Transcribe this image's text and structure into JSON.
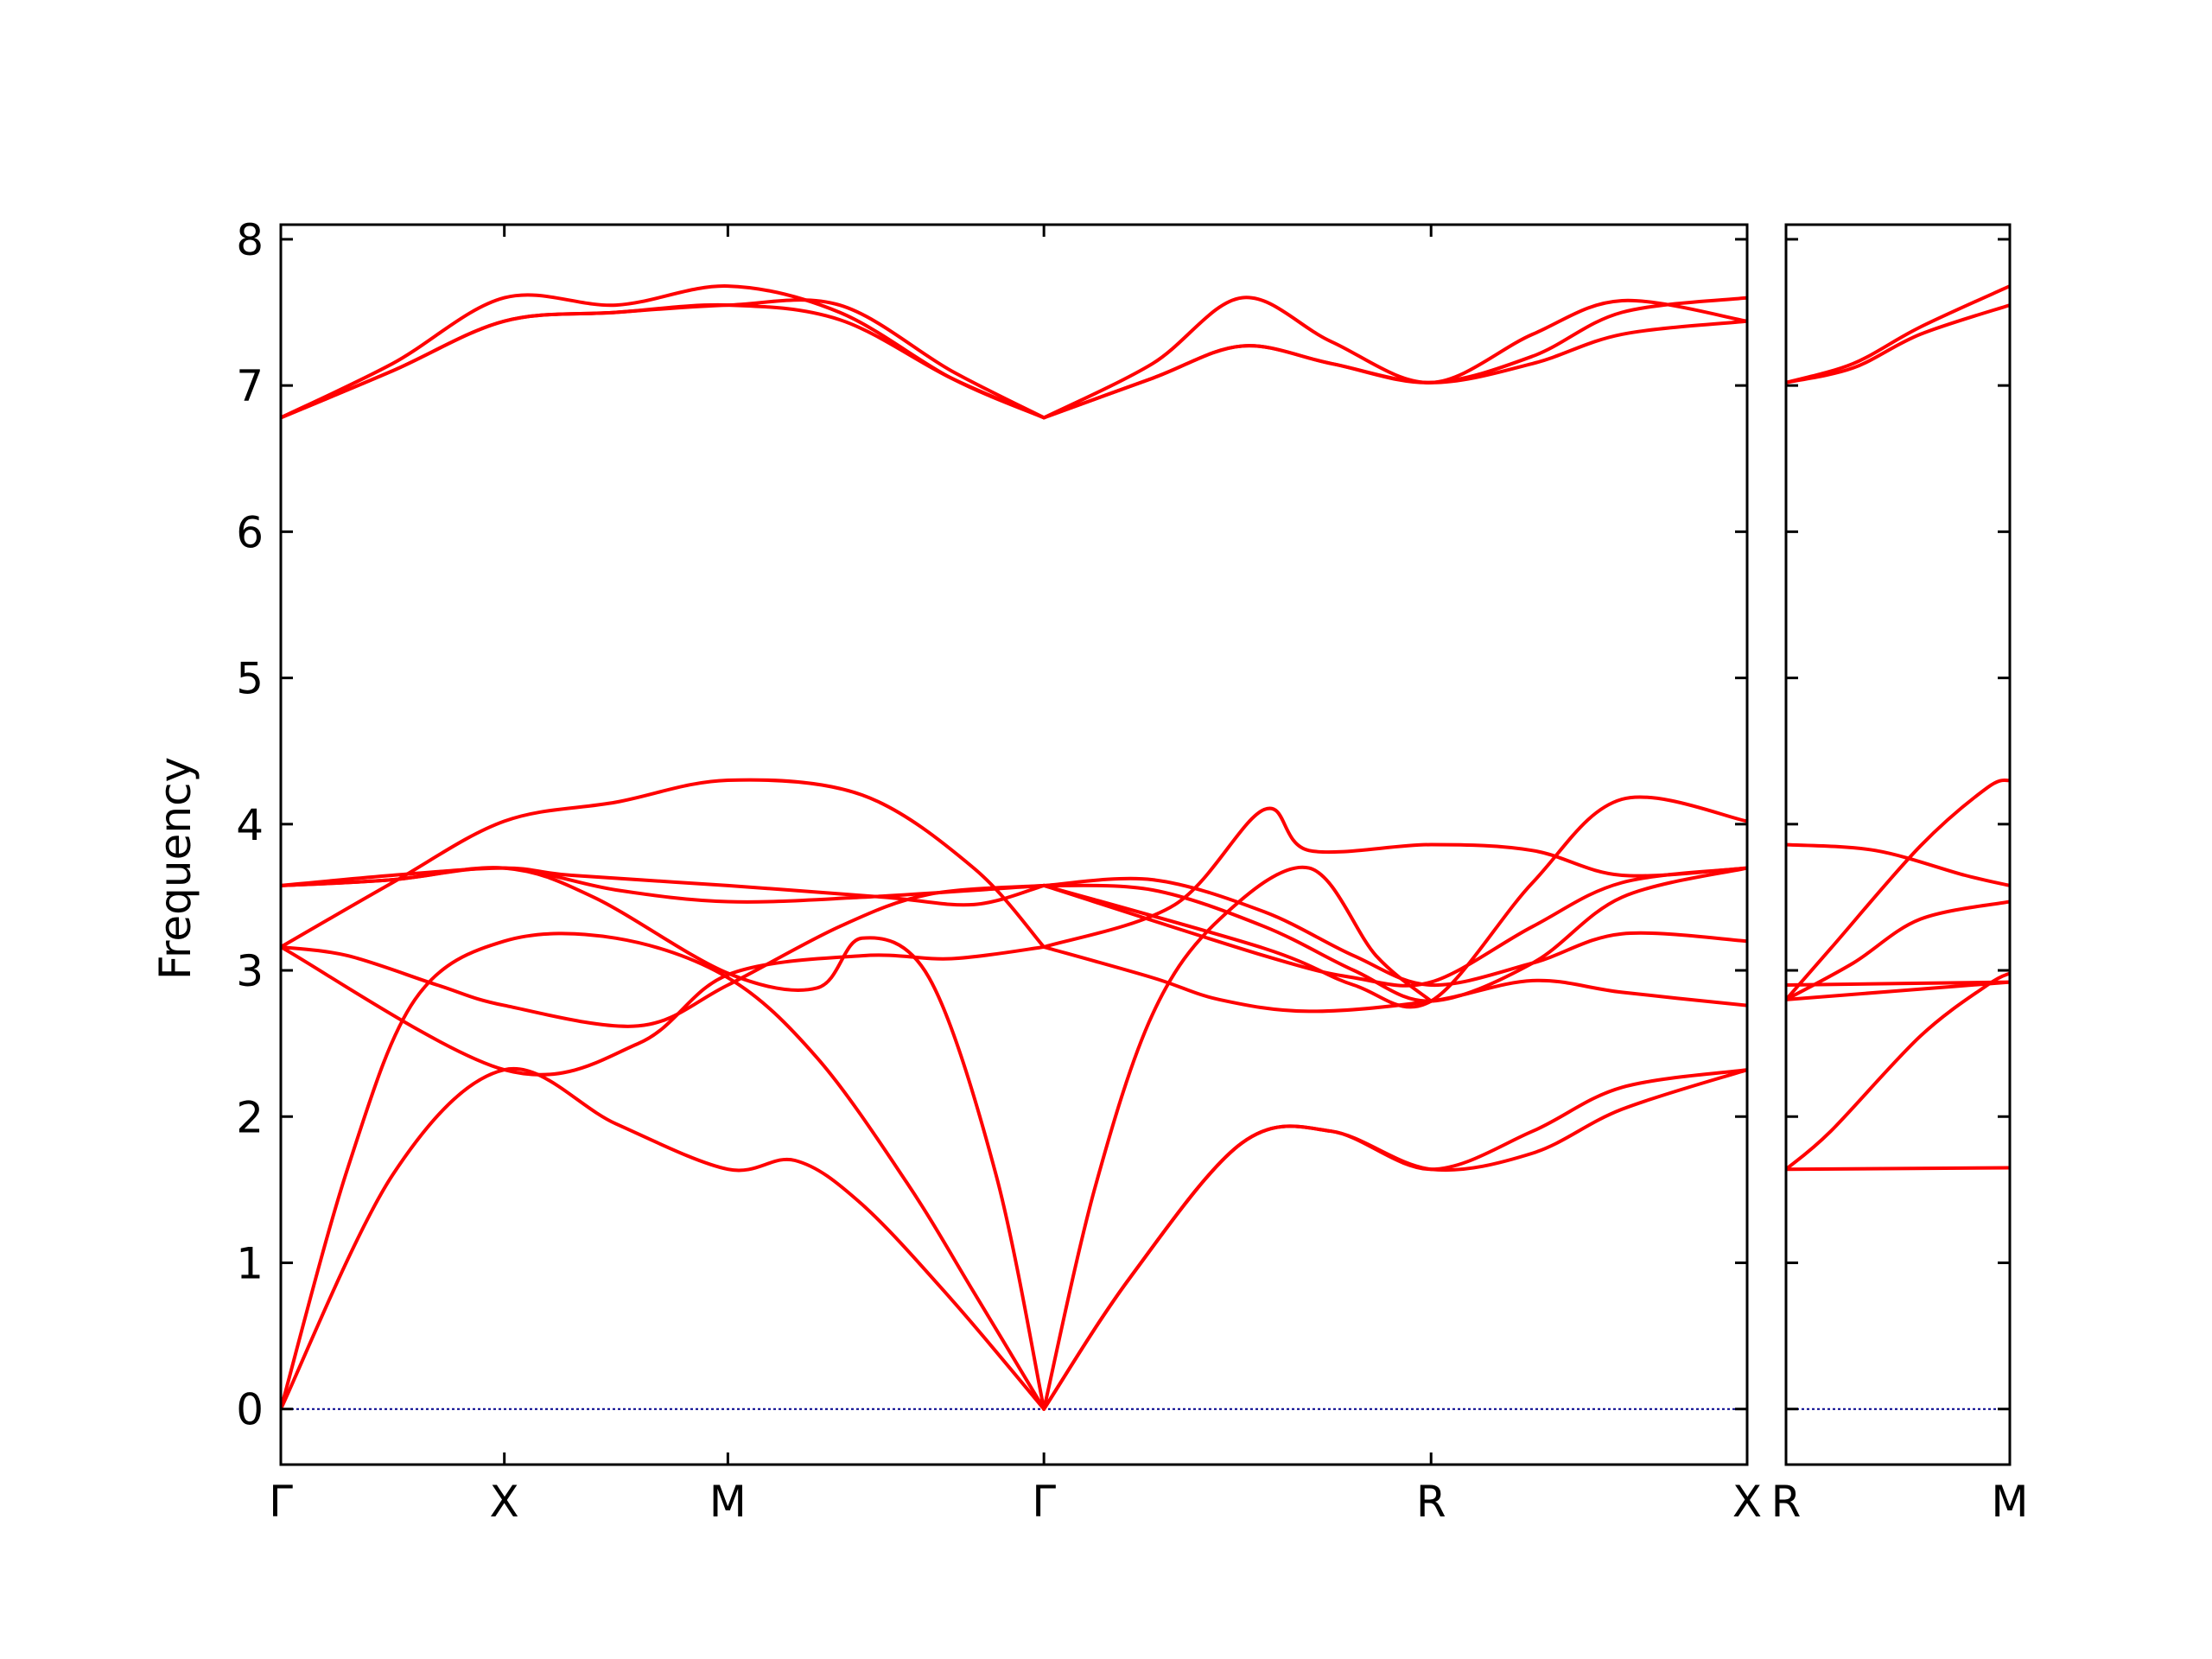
{
  "chart_data": {
    "type": "line",
    "ylabel": "Frequency",
    "ylim": [
      -0.38,
      8.1
    ],
    "yticks": [
      0,
      1,
      2,
      3,
      4,
      5,
      6,
      7,
      8
    ],
    "grid": false,
    "line_color": "#ff0000",
    "zero_line_color": "#00008b",
    "panels": [
      {
        "id": "main",
        "xticks": [
          {
            "label": "Γ",
            "x": 0
          },
          {
            "label": "X",
            "x": 0.5
          },
          {
            "label": "M",
            "x": 1.0
          },
          {
            "label": "Γ",
            "x": 1.707
          },
          {
            "label": "R",
            "x": 2.573
          },
          {
            "label": "X",
            "x": 3.28
          }
        ],
        "xlim": [
          0,
          3.28
        ],
        "series": [
          {
            "x": [
              0,
              0.25,
              0.5,
              0.75,
              1.0,
              1.15,
              1.3,
              1.5,
              1.707
            ],
            "y": [
              0,
              1.6,
              2.32,
              1.95,
              1.64,
              1.7,
              1.4,
              0.75,
              0
            ]
          },
          {
            "x": [
              0,
              0.15,
              0.3,
              0.5,
              0.75,
              1.0,
              1.2,
              1.4,
              1.55,
              1.707
            ],
            "y": [
              0,
              1.65,
              2.8,
              3.2,
              3.22,
              2.95,
              2.4,
              1.55,
              0.8,
              0
            ]
          },
          {
            "x": [
              0,
              0.25,
              0.5,
              0.7,
              1.0,
              1.2,
              1.3,
              1.45,
              1.6,
              1.707
            ],
            "y": [
              3.58,
              3.62,
              3.7,
              3.5,
              2.98,
              2.88,
              3.22,
              2.95,
              1.6,
              0
            ]
          },
          {
            "x": [
              0,
              0.15,
              0.35,
              0.5,
              0.8,
              1.0,
              1.25,
              1.45,
              1.707
            ],
            "y": [
              3.16,
              3.1,
              2.9,
              2.76,
              2.62,
              2.9,
              3.3,
              3.52,
              3.58
            ]
          },
          {
            "x": [
              0,
              0.5,
              0.8,
              1.0,
              1.3,
              1.5,
              1.707
            ],
            "y": [
              3.16,
              2.32,
              2.5,
              2.97,
              3.1,
              3.08,
              3.16
            ]
          },
          {
            "x": [
              0,
              0.25,
              0.5,
              0.65,
              1.0,
              1.35,
              1.55,
              1.707
            ],
            "y": [
              3.58,
              3.65,
              3.7,
              3.65,
              3.58,
              3.5,
              3.45,
              3.58
            ]
          },
          {
            "x": [
              0,
              0.25,
              0.5,
              0.75,
              1.0,
              1.3,
              1.55,
              1.707
            ],
            "y": [
              3.16,
              3.6,
              4.02,
              4.15,
              4.3,
              4.2,
              3.7,
              3.16
            ]
          },
          {
            "x": [
              0,
              0.25,
              0.5,
              0.75,
              1.0,
              1.3,
              1.707
            ],
            "y": [
              3.58,
              3.62,
              3.7,
              3.55,
              3.47,
              3.5,
              3.58
            ]
          },
          {
            "x": [
              0,
              0.25,
              0.5,
              0.75,
              1.0,
              1.25,
              1.5,
              1.707
            ],
            "y": [
              6.78,
              7.1,
              7.44,
              7.5,
              7.55,
              7.45,
              7.05,
              6.78
            ]
          },
          {
            "x": [
              0,
              0.25,
              0.5,
              0.75,
              1.0,
              1.25,
              1.5,
              1.707
            ],
            "y": [
              6.78,
              7.15,
              7.6,
              7.55,
              7.68,
              7.5,
              7.05,
              6.78
            ]
          },
          {
            "x": [
              0,
              0.25,
              0.5,
              0.75,
              1.0,
              1.25,
              1.5,
              1.707
            ],
            "y": [
              6.78,
              7.1,
              7.44,
              7.5,
              7.55,
              7.55,
              7.1,
              6.78
            ]
          },
          {
            "x": [
              1.707,
              1.9,
              2.15,
              2.35,
              2.573,
              2.8,
              3.0,
              3.28
            ],
            "y": [
              0,
              0.9,
              1.82,
              1.9,
              1.64,
              1.9,
              2.2,
              2.32
            ]
          },
          {
            "x": [
              1.707,
              1.9,
              2.15,
              2.35,
              2.573,
              2.8,
              3.0,
              3.28
            ],
            "y": [
              0,
              0.9,
              1.82,
              1.9,
              1.64,
              1.75,
              2.05,
              2.32
            ]
          },
          {
            "x": [
              1.707,
              1.82,
              1.95,
              2.1,
              2.3,
              2.45,
              2.573
            ],
            "y": [
              0,
              1.5,
              2.7,
              3.35,
              3.7,
              3.1,
              2.79
            ]
          },
          {
            "x": [
              1.707,
              1.95,
              2.1,
              2.3,
              2.573,
              2.8,
              3.0,
              3.28
            ],
            "y": [
              3.16,
              2.95,
              2.8,
              2.72,
              2.79,
              2.93,
              2.85,
              2.76
            ]
          },
          {
            "x": [
              1.707,
              2.0,
              2.2,
              2.3,
              2.573,
              2.8,
              3.0,
              3.28
            ],
            "y": [
              3.16,
              3.45,
              4.1,
              3.82,
              3.86,
              3.82,
              3.65,
              3.7
            ]
          },
          {
            "x": [
              1.707,
              1.95,
              2.2,
              2.4,
              2.573,
              2.8,
              3.0,
              3.28
            ],
            "y": [
              3.58,
              3.62,
              3.4,
              3.1,
              2.9,
              3.05,
              3.25,
              3.2
            ]
          },
          {
            "x": [
              1.707,
              1.95,
              2.2,
              2.4,
              2.573,
              2.8,
              3.0,
              3.28
            ],
            "y": [
              3.58,
              3.55,
              3.3,
              3.0,
              2.79,
              3.05,
              3.5,
              3.7
            ]
          },
          {
            "x": [
              1.707,
              2.2,
              2.4,
              2.573,
              2.8,
              3.0,
              3.28
            ],
            "y": [
              3.58,
              3.15,
              2.9,
              2.79,
              3.6,
              4.17,
              4.02
            ]
          },
          {
            "x": [
              1.707,
              2.2,
              2.4,
              2.573,
              2.8,
              3.0,
              3.28
            ],
            "y": [
              3.58,
              3.1,
              2.95,
              2.92,
              3.3,
              3.6,
              3.7
            ]
          },
          {
            "x": [
              1.707,
              1.95,
              2.15,
              2.35,
              2.573,
              2.8,
              3.0,
              3.28
            ],
            "y": [
              6.78,
              7.15,
              7.6,
              7.3,
              7.02,
              7.35,
              7.58,
              7.44
            ]
          },
          {
            "x": [
              1.707,
              1.95,
              2.15,
              2.35,
              2.573,
              2.8,
              3.0,
              3.28
            ],
            "y": [
              6.78,
              7.05,
              7.27,
              7.15,
              7.02,
              7.2,
              7.5,
              7.6
            ]
          },
          {
            "x": [
              1.707,
              1.95,
              2.15,
              2.35,
              2.573,
              2.8,
              3.0,
              3.28
            ],
            "y": [
              6.78,
              7.05,
              7.27,
              7.15,
              7.02,
              7.15,
              7.35,
              7.44
            ]
          }
        ]
      },
      {
        "id": "side",
        "xticks": [
          {
            "label": "R",
            "x": 0
          },
          {
            "label": "M",
            "x": 0.5
          }
        ],
        "xlim": [
          0,
          0.5
        ],
        "series": [
          {
            "x": [
              0,
              0.5
            ],
            "y": [
              1.64,
              1.65
            ]
          },
          {
            "x": [
              0,
              0.1,
              0.3,
              0.45,
              0.5
            ],
            "y": [
              1.64,
              1.9,
              2.55,
              2.9,
              2.98
            ]
          },
          {
            "x": [
              0,
              0.5
            ],
            "y": [
              2.8,
              2.92
            ]
          },
          {
            "x": [
              0,
              0.5
            ],
            "y": [
              2.9,
              2.92
            ]
          },
          {
            "x": [
              0,
              0.15,
              0.3,
              0.5
            ],
            "y": [
              2.8,
              3.05,
              3.35,
              3.47
            ]
          },
          {
            "x": [
              0,
              0.1,
              0.3,
              0.45,
              0.5
            ],
            "y": [
              2.8,
              3.15,
              3.85,
              4.25,
              4.3
            ]
          },
          {
            "x": [
              0,
              0.2,
              0.4,
              0.5
            ],
            "y": [
              3.86,
              3.82,
              3.65,
              3.58
            ]
          },
          {
            "x": [
              0,
              0.15,
              0.3,
              0.5
            ],
            "y": [
              7.02,
              7.15,
              7.4,
              7.68
            ]
          },
          {
            "x": [
              0,
              0.15,
              0.3,
              0.5
            ],
            "y": [
              7.02,
              7.12,
              7.35,
              7.55
            ]
          }
        ]
      }
    ]
  }
}
